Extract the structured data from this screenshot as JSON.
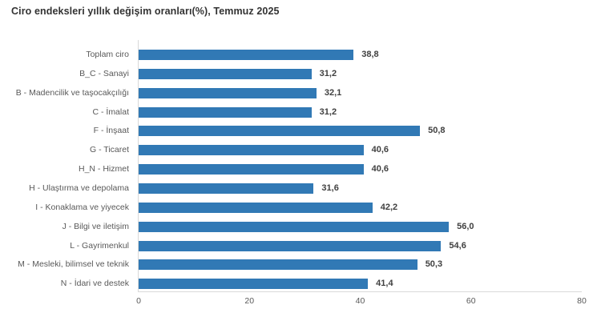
{
  "chart_data": {
    "type": "bar",
    "orientation": "horizontal",
    "title": "Ciro endeksleri yıllık değişim oranları(%), Temmuz 2025",
    "categories": [
      "Toplam ciro",
      "B_C - Sanayi",
      "B - Madencilik ve taşocakçılığı",
      "C - İmalat",
      "F - İnşaat",
      "G - Ticaret",
      "H_N - Hizmet",
      "H - Ulaştırma ve depolama",
      "I - Konaklama ve yiyecek",
      "J - Bilgi ve iletişim",
      "L - Gayrimenkul",
      "M - Mesleki, bilimsel ve teknik",
      "N - İdari ve destek"
    ],
    "values": [
      38.8,
      31.2,
      32.1,
      31.2,
      50.8,
      40.6,
      40.6,
      31.6,
      42.2,
      56.0,
      54.6,
      50.3,
      41.4
    ],
    "value_labels": [
      "38,8",
      "31,2",
      "32,1",
      "31,2",
      "50,8",
      "40,6",
      "40,6",
      "31,6",
      "42,2",
      "56,0",
      "54,6",
      "50,3",
      "41,4"
    ],
    "xlabel": "",
    "ylabel": "",
    "xlim": [
      0,
      80
    ],
    "x_ticks": [
      0,
      20,
      40,
      60,
      80
    ],
    "grid": false,
    "legend": "none",
    "decimal_separator": ","
  },
  "colors": {
    "bar": "#3179b5",
    "title_text": "#333333",
    "category_text": "#595959",
    "value_text": "#404040",
    "axis_line": "#d9d9d9",
    "background": "#ffffff"
  }
}
